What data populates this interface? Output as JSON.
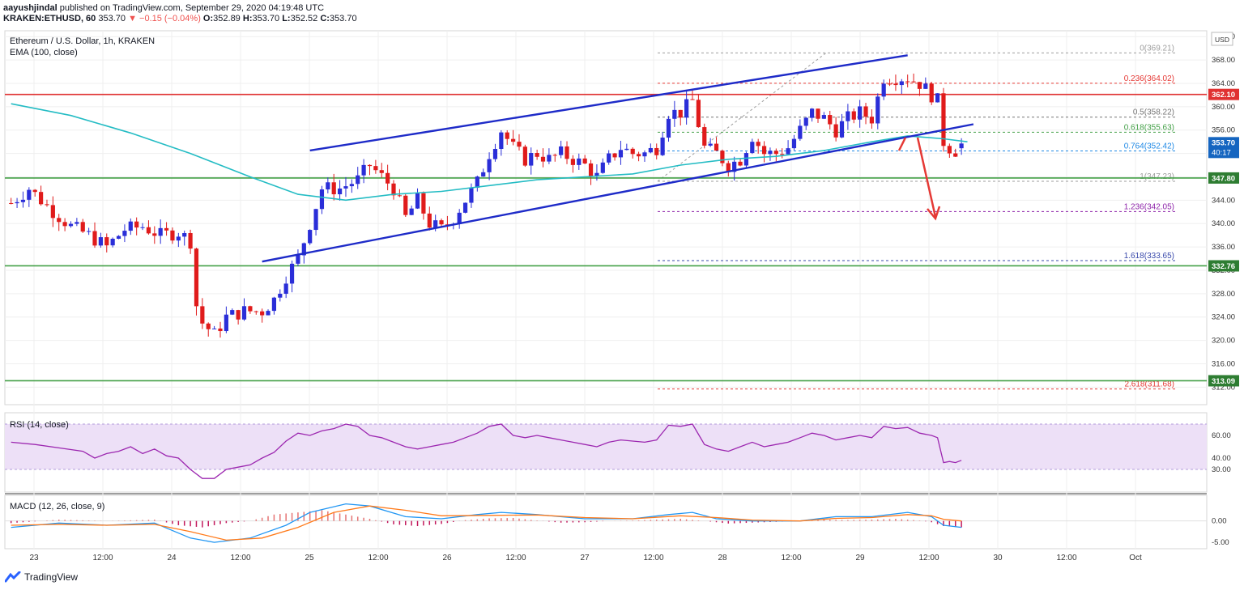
{
  "publish_line": {
    "author": "aayushjindal",
    "published_text": "published on TradingView.com, September 29, 2020 04:19:48 UTC"
  },
  "quote_line": {
    "symbol_tf": "KRAKEN:ETHUSD, 60",
    "last": "353.70",
    "change": "▼ −0.15 (−0.04%)",
    "o_label": "O:",
    "o": "352.89",
    "h_label": "H:",
    "h": "353.70",
    "l_label": "L:",
    "l": "352.52",
    "c_label": "C:",
    "c": "353.70"
  },
  "legend": {
    "instrument": "Ethereum / U.S. Dollar, 1h, KRAKEN",
    "ema": "EMA (100, close)",
    "rsi": "RSI (14, close)",
    "macd": "MACD (12, 26, close, 9)"
  },
  "currency_label": "USD",
  "footer_brand": "TradingView",
  "colors": {
    "up": "#2a2ed8",
    "down": "#e01b1b",
    "ema": "#24bcc4",
    "trendline": "#1e2bc8",
    "resistance": "#e03131",
    "support": "#43a047",
    "rsi": "#9c27b0",
    "rsi_band": "#ede0f7",
    "macd_line": "#2196f3",
    "signal_line": "#ff7a1a",
    "hist": "#c2185b",
    "arrow": "#e53935"
  },
  "chart_data": {
    "type": "candlestick",
    "ylim": [
      309,
      373
    ],
    "y_ticks": [
      312,
      316,
      320,
      324,
      328,
      332,
      336,
      340,
      344,
      348,
      352,
      356,
      360,
      364,
      368,
      372
    ],
    "x_ticks": [
      "23",
      "12:00",
      "24",
      "12:00",
      "25",
      "12:00",
      "26",
      "12:00",
      "27",
      "12:00",
      "28",
      "12:00",
      "29",
      "12:00",
      "30",
      "12:00",
      "Oct"
    ],
    "time_axis_note": "hourly bars from Sep 22 ~18:00 to Sep 29 ~08:00",
    "close_path": [
      [
        0,
        343.5
      ],
      [
        3,
        346
      ],
      [
        6,
        343
      ],
      [
        10,
        339.5
      ],
      [
        13,
        338
      ],
      [
        16,
        336
      ],
      [
        19,
        339
      ],
      [
        22,
        339.5
      ],
      [
        25,
        338
      ],
      [
        28,
        338.5
      ],
      [
        30,
        337
      ],
      [
        31,
        326
      ],
      [
        32,
        323
      ],
      [
        34,
        321
      ],
      [
        36,
        324
      ],
      [
        39,
        325
      ],
      [
        42,
        325
      ],
      [
        44,
        327
      ],
      [
        46,
        331
      ],
      [
        48,
        334
      ],
      [
        50,
        340
      ],
      [
        52,
        346
      ],
      [
        55,
        346
      ],
      [
        58,
        347.5
      ],
      [
        60,
        350
      ],
      [
        62,
        348
      ],
      [
        64,
        346
      ],
      [
        66,
        341
      ],
      [
        68,
        344
      ],
      [
        70,
        340
      ],
      [
        72,
        339
      ],
      [
        74,
        341
      ],
      [
        76,
        344
      ],
      [
        78,
        347
      ],
      [
        80,
        352
      ],
      [
        82,
        356
      ],
      [
        84,
        353
      ],
      [
        86,
        351
      ],
      [
        88,
        352
      ],
      [
        90,
        351
      ],
      [
        92,
        352
      ],
      [
        94,
        351
      ],
      [
        96,
        350
      ],
      [
        98,
        348
      ],
      [
        100,
        351
      ],
      [
        102,
        353
      ],
      [
        104,
        352
      ],
      [
        106,
        352
      ],
      [
        108,
        353
      ],
      [
        110,
        359
      ],
      [
        112,
        359
      ],
      [
        114,
        361
      ],
      [
        116,
        353
      ],
      [
        118,
        352
      ],
      [
        120,
        350
      ],
      [
        122,
        351
      ],
      [
        124,
        355
      ],
      [
        126,
        352
      ],
      [
        128,
        352
      ],
      [
        130,
        353
      ],
      [
        132,
        356
      ],
      [
        134,
        359
      ],
      [
        136,
        358
      ],
      [
        138,
        356
      ],
      [
        140,
        358
      ],
      [
        142,
        359
      ],
      [
        144,
        358
      ],
      [
        146,
        365
      ],
      [
        148,
        365
      ],
      [
        150,
        365
      ],
      [
        152,
        364
      ],
      [
        154,
        362
      ],
      [
        155,
        361
      ],
      [
        156,
        354
      ],
      [
        157,
        353
      ],
      [
        158,
        352.5
      ],
      [
        159,
        353.7
      ]
    ],
    "ema_100": [
      [
        0,
        360.5
      ],
      [
        10,
        358.5
      ],
      [
        20,
        355.5
      ],
      [
        30,
        352
      ],
      [
        40,
        348
      ],
      [
        48,
        345
      ],
      [
        56,
        344
      ],
      [
        64,
        345
      ],
      [
        72,
        345.5
      ],
      [
        80,
        346.5
      ],
      [
        88,
        347.5
      ],
      [
        96,
        348
      ],
      [
        104,
        348.5
      ],
      [
        112,
        350
      ],
      [
        120,
        351
      ],
      [
        128,
        351.5
      ],
      [
        136,
        352.5
      ],
      [
        144,
        354
      ],
      [
        150,
        355
      ],
      [
        156,
        354.5
      ],
      [
        160,
        354
      ]
    ],
    "levels": {
      "resistance": 362.1,
      "support_1": 347.8,
      "support_2": 332.76,
      "support_3": 313.09
    },
    "level_labels": [
      "362.10",
      "347.80",
      "332.76",
      "313.09"
    ],
    "price_labels": {
      "last": "353.70",
      "countdown": "40:17"
    },
    "channel": {
      "upper": [
        [
          50,
          352.5
        ],
        [
          150,
          368.8
        ]
      ],
      "lower": [
        [
          42,
          333.5
        ],
        [
          161,
          357
        ]
      ]
    },
    "fibonacci": {
      "from": 369.21,
      "to": 347.23,
      "levels": [
        {
          "label": "0(369.21)",
          "price": 369.21,
          "color": "#9e9e9e"
        },
        {
          "label": "0.236(364.02)",
          "price": 364.02,
          "color": "#e53935"
        },
        {
          "label": "0.5(358.22)",
          "price": 358.22,
          "color": "#757575"
        },
        {
          "label": "0.618(355.63)",
          "price": 355.63,
          "color": "#43a047"
        },
        {
          "label": "0.764(352.42)",
          "price": 352.42,
          "color": "#1e88e5"
        },
        {
          "label": "1(347.23)",
          "price": 347.23,
          "color": "#9e9e9e"
        },
        {
          "label": "1.236(342.05)",
          "price": 342.05,
          "color": "#8e24aa"
        },
        {
          "label": "1.618(333.65)",
          "price": 333.65,
          "color": "#3949ab"
        },
        {
          "label": "2.618(311.68)",
          "price": 311.68,
          "color": "#e53935"
        }
      ]
    },
    "rsi": {
      "ticks": [
        "60.00",
        "40.00",
        "30.00"
      ],
      "band": [
        30,
        70
      ],
      "values": [
        [
          0,
          54
        ],
        [
          4,
          52
        ],
        [
          8,
          49
        ],
        [
          12,
          46
        ],
        [
          14,
          40
        ],
        [
          16,
          44
        ],
        [
          18,
          46
        ],
        [
          20,
          50
        ],
        [
          22,
          44
        ],
        [
          24,
          48
        ],
        [
          26,
          42
        ],
        [
          28,
          40
        ],
        [
          30,
          30
        ],
        [
          32,
          22
        ],
        [
          34,
          22
        ],
        [
          36,
          30
        ],
        [
          38,
          32
        ],
        [
          40,
          34
        ],
        [
          42,
          40
        ],
        [
          44,
          45
        ],
        [
          46,
          55
        ],
        [
          48,
          62
        ],
        [
          50,
          60
        ],
        [
          52,
          64
        ],
        [
          54,
          66
        ],
        [
          56,
          70
        ],
        [
          58,
          68
        ],
        [
          60,
          60
        ],
        [
          62,
          58
        ],
        [
          64,
          54
        ],
        [
          66,
          50
        ],
        [
          68,
          48
        ],
        [
          70,
          50
        ],
        [
          72,
          52
        ],
        [
          74,
          54
        ],
        [
          76,
          58
        ],
        [
          78,
          62
        ],
        [
          80,
          68
        ],
        [
          82,
          70
        ],
        [
          84,
          60
        ],
        [
          86,
          58
        ],
        [
          88,
          60
        ],
        [
          90,
          58
        ],
        [
          92,
          56
        ],
        [
          94,
          54
        ],
        [
          96,
          52
        ],
        [
          98,
          50
        ],
        [
          100,
          54
        ],
        [
          102,
          56
        ],
        [
          104,
          55
        ],
        [
          106,
          54
        ],
        [
          108,
          56
        ],
        [
          110,
          69
        ],
        [
          112,
          68
        ],
        [
          114,
          70
        ],
        [
          116,
          52
        ],
        [
          118,
          48
        ],
        [
          120,
          46
        ],
        [
          122,
          50
        ],
        [
          124,
          54
        ],
        [
          126,
          50
        ],
        [
          128,
          52
        ],
        [
          130,
          54
        ],
        [
          132,
          58
        ],
        [
          134,
          62
        ],
        [
          136,
          60
        ],
        [
          138,
          56
        ],
        [
          140,
          58
        ],
        [
          142,
          60
        ],
        [
          144,
          58
        ],
        [
          146,
          68
        ],
        [
          148,
          66
        ],
        [
          150,
          67
        ],
        [
          152,
          62
        ],
        [
          154,
          60
        ],
        [
          155,
          58
        ],
        [
          156,
          36
        ],
        [
          157,
          37
        ],
        [
          158,
          36
        ],
        [
          159,
          38
        ]
      ]
    },
    "macd": {
      "ticks": [
        "0.00",
        "-5.00"
      ],
      "ylim": [
        -6.5,
        6
      ],
      "macd_line": [
        [
          0,
          -1.5
        ],
        [
          8,
          -0.5
        ],
        [
          16,
          -1
        ],
        [
          24,
          -0.5
        ],
        [
          30,
          -4
        ],
        [
          34,
          -5
        ],
        [
          40,
          -4
        ],
        [
          46,
          -1
        ],
        [
          50,
          2
        ],
        [
          56,
          4
        ],
        [
          60,
          3.5
        ],
        [
          66,
          1
        ],
        [
          72,
          0.5
        ],
        [
          78,
          1.5
        ],
        [
          82,
          2
        ],
        [
          88,
          1.5
        ],
        [
          96,
          0.5
        ],
        [
          104,
          0.5
        ],
        [
          110,
          1.5
        ],
        [
          114,
          2
        ],
        [
          118,
          0.5
        ],
        [
          124,
          0
        ],
        [
          132,
          0
        ],
        [
          138,
          1
        ],
        [
          144,
          1
        ],
        [
          150,
          2
        ],
        [
          154,
          1
        ],
        [
          156,
          -1
        ],
        [
          159,
          -1.5
        ]
      ],
      "signal_line": [
        [
          0,
          -1
        ],
        [
          8,
          -0.8
        ],
        [
          16,
          -1
        ],
        [
          24,
          -0.8
        ],
        [
          30,
          -2.5
        ],
        [
          36,
          -4.5
        ],
        [
          42,
          -4
        ],
        [
          48,
          -1.5
        ],
        [
          54,
          2
        ],
        [
          60,
          3.5
        ],
        [
          66,
          2.5
        ],
        [
          72,
          1.2
        ],
        [
          80,
          1.3
        ],
        [
          88,
          1.4
        ],
        [
          96,
          0.8
        ],
        [
          104,
          0.5
        ],
        [
          112,
          1.2
        ],
        [
          118,
          0.8
        ],
        [
          124,
          0.2
        ],
        [
          132,
          0
        ],
        [
          138,
          0.6
        ],
        [
          144,
          0.8
        ],
        [
          150,
          1.5
        ],
        [
          154,
          1.2
        ],
        [
          156,
          0.4
        ],
        [
          159,
          0
        ]
      ],
      "hist": [
        [
          0,
          -0.5
        ],
        [
          8,
          0.3
        ],
        [
          16,
          0
        ],
        [
          24,
          0.3
        ],
        [
          28,
          -1
        ],
        [
          32,
          -1.5
        ],
        [
          36,
          -0.5
        ],
        [
          40,
          0
        ],
        [
          44,
          1.5
        ],
        [
          48,
          2
        ],
        [
          52,
          2.5
        ],
        [
          56,
          1.5
        ],
        [
          60,
          0.5
        ],
        [
          64,
          -0.8
        ],
        [
          68,
          -1.2
        ],
        [
          72,
          -0.7
        ],
        [
          76,
          0.2
        ],
        [
          80,
          0.6
        ],
        [
          84,
          0.7
        ],
        [
          88,
          0.1
        ],
        [
          92,
          -0.4
        ],
        [
          96,
          -0.3
        ],
        [
          100,
          0
        ],
        [
          104,
          0.1
        ],
        [
          108,
          0.3
        ],
        [
          112,
          0.5
        ],
        [
          116,
          0
        ],
        [
          120,
          -0.6
        ],
        [
          124,
          -0.4
        ],
        [
          128,
          -0.2
        ],
        [
          132,
          0.1
        ],
        [
          136,
          0.3
        ],
        [
          140,
          0.2
        ],
        [
          144,
          0.3
        ],
        [
          148,
          0.5
        ],
        [
          152,
          0.1
        ],
        [
          154,
          -0.3
        ],
        [
          156,
          -1.2
        ],
        [
          158,
          -1.4
        ],
        [
          159,
          -1.5
        ]
      ]
    }
  }
}
